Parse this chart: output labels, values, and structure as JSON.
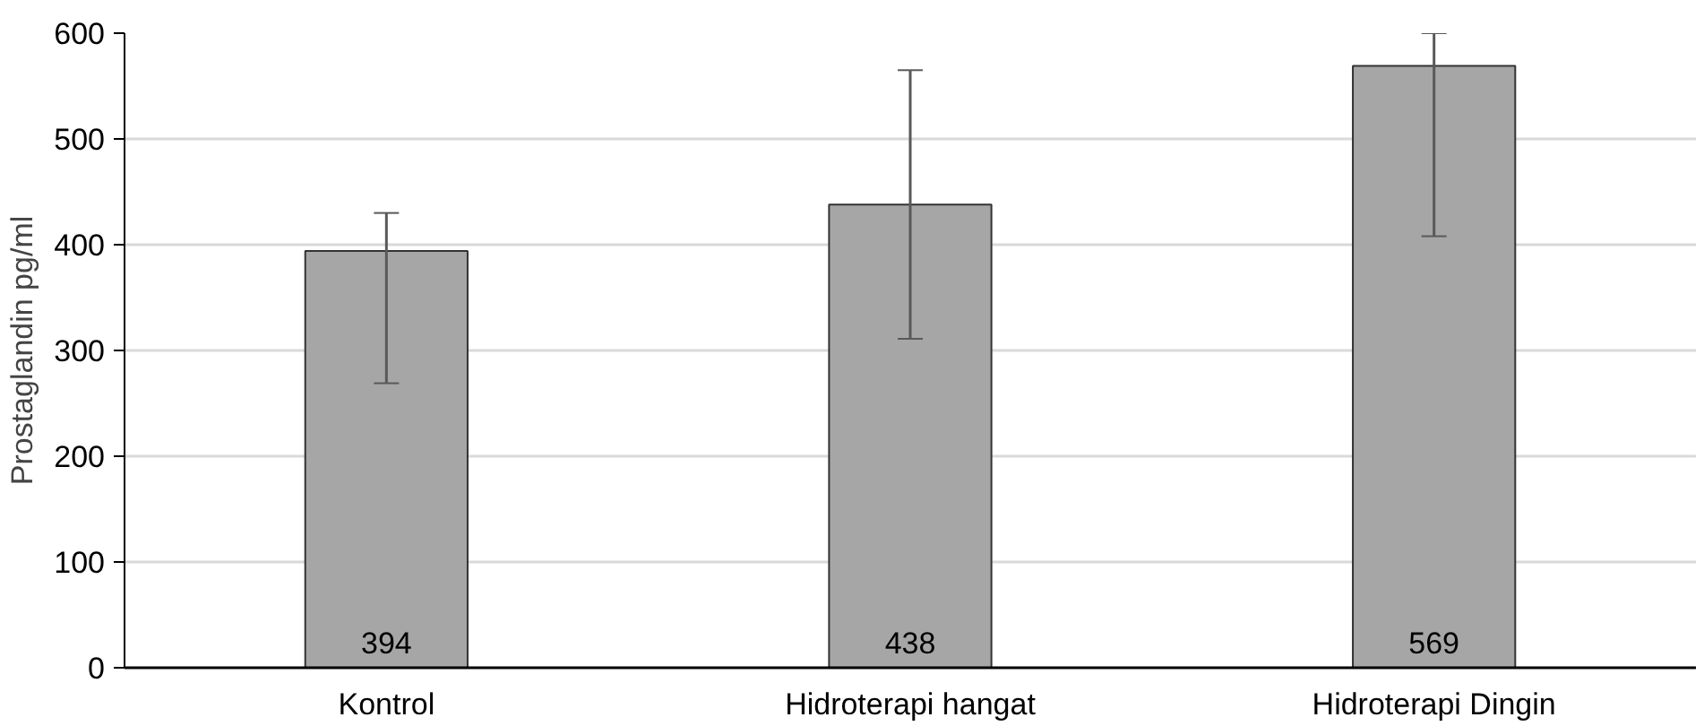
{
  "chart_data": {
    "type": "bar",
    "ylabel": "Prostaglandin pg/ml",
    "categories": [
      "Kontrol",
      "Hidroterapi hangat",
      "Hidroterapi Dingin"
    ],
    "values": [
      394,
      438,
      569
    ],
    "color": "#a6a6a6",
    "value_labels": [
      "394",
      "438",
      "569"
    ],
    "errors": [
      [
        269,
        430
      ],
      [
        311,
        565
      ],
      [
        408,
        600
      ]
    ],
    "ylim": [
      0,
      600
    ],
    "yticks": [
      0,
      100,
      200,
      300,
      400,
      500,
      600
    ],
    "grid": "y"
  }
}
